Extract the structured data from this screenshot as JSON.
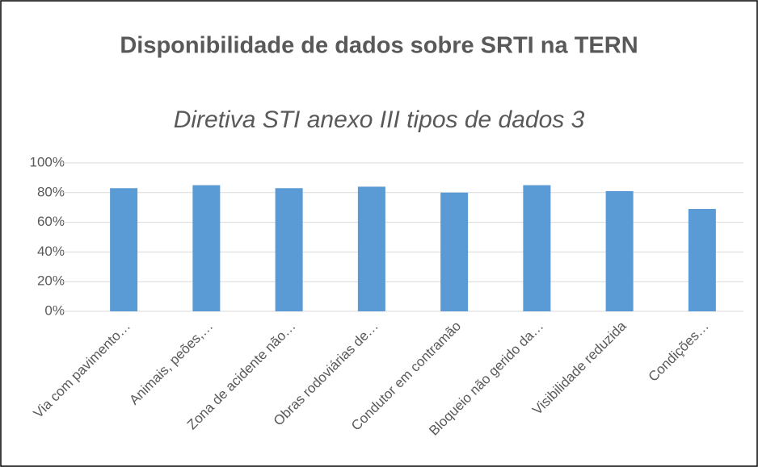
{
  "chart_data": {
    "type": "bar",
    "title": "Disponibilidade de dados sobre SRTI na TERN",
    "subtitle": "Diretiva STI anexo III tipos de dados 3",
    "categories": [
      "Via com pavimento…",
      "Animais, peões,…",
      "Zona de acidente não…",
      "Obras rodoviárias de…",
      "Condutor em contramão",
      "Bloqueio não gerido da…",
      "Visibilidade reduzida",
      "Condições…"
    ],
    "values": [
      83,
      85,
      83,
      84,
      80,
      85,
      81,
      69
    ],
    "color": "#5b9bd5",
    "ylim": [
      0,
      100
    ],
    "yticks": [
      {
        "value": 0,
        "label": "0%"
      },
      {
        "value": 20,
        "label": "20%"
      },
      {
        "value": 40,
        "label": "40%"
      },
      {
        "value": 60,
        "label": "60%"
      },
      {
        "value": 80,
        "label": "80%"
      },
      {
        "value": 100,
        "label": "100%"
      }
    ],
    "grid": true
  }
}
